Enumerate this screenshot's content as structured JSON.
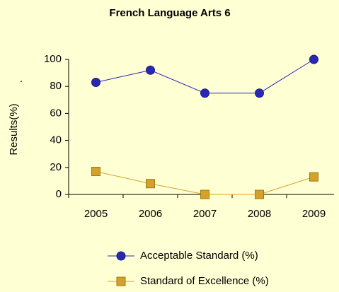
{
  "chart_data": {
    "type": "line",
    "title": "French Language Arts 6",
    "ylabel": "Results(%)",
    "annotation": ".",
    "categories": [
      "2005",
      "2006",
      "2007",
      "2008",
      "2009"
    ],
    "series": [
      {
        "name": "Acceptable Standard (%)",
        "color": "#2828b4",
        "marker": "circle",
        "values": [
          83,
          92,
          75,
          75,
          100
        ]
      },
      {
        "name": "Standard of Excellence (%)",
        "color": "#d4a22a",
        "marker": "square",
        "values": [
          17,
          8,
          0,
          0,
          13
        ]
      }
    ],
    "ylim": [
      0,
      100
    ],
    "yticks": [
      0,
      20,
      40,
      60,
      80,
      100
    ],
    "grid": false,
    "legend": "bottom"
  }
}
